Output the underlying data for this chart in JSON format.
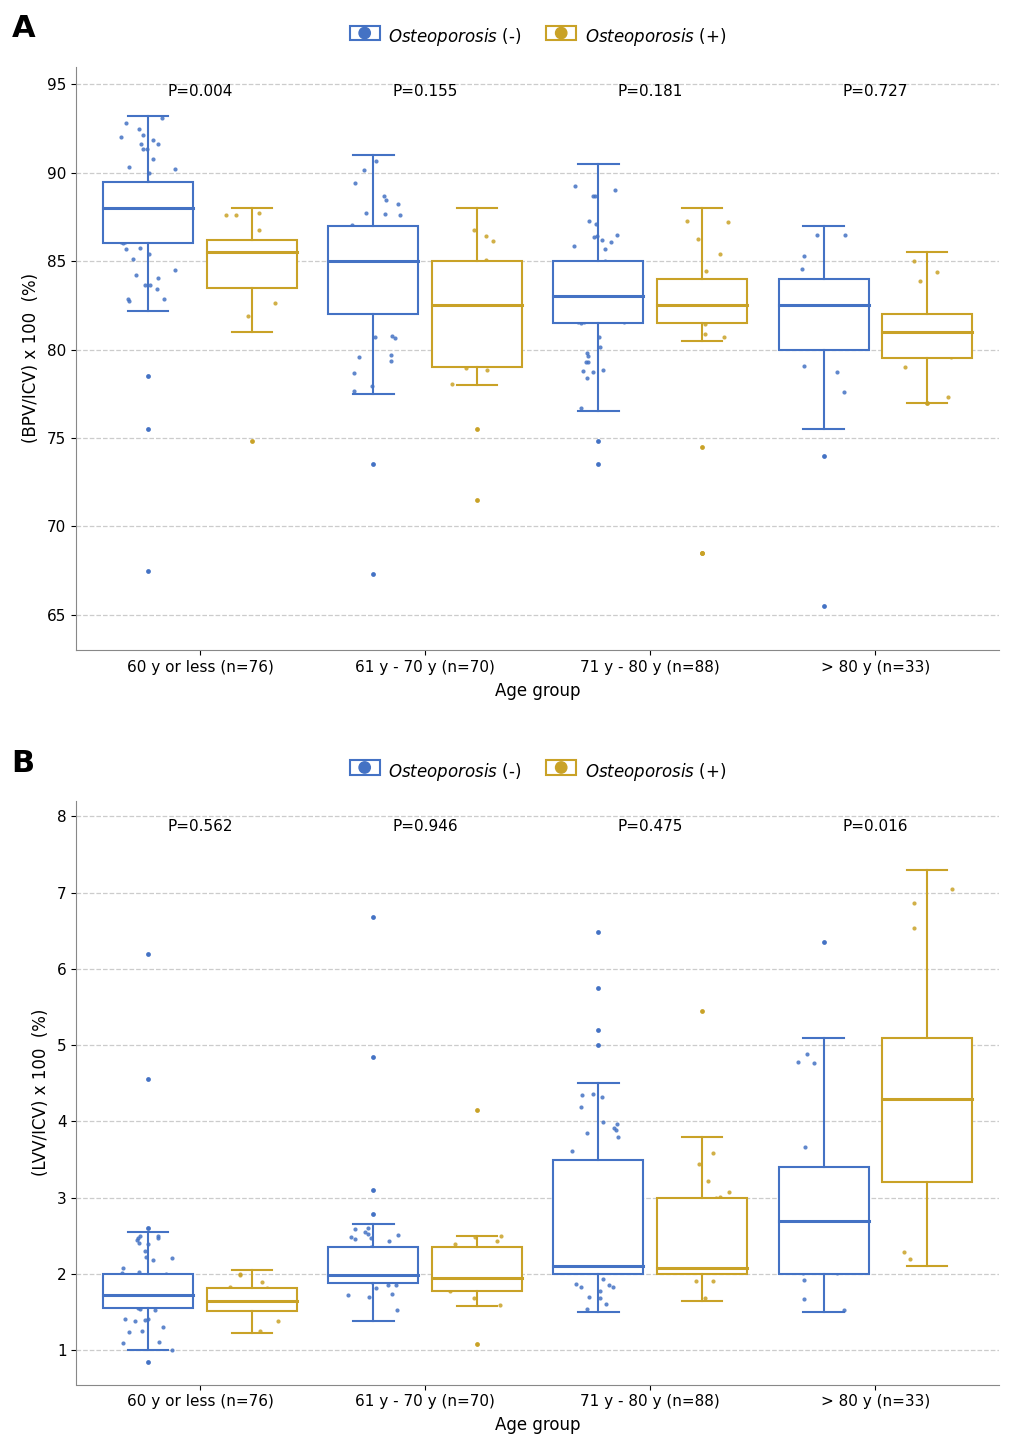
{
  "panel_A": {
    "title_label": "A",
    "ylabel": "(BPV/ICV) x 100  (%)",
    "xlabel": "Age group",
    "ylim": [
      63,
      96
    ],
    "yticks": [
      65,
      70,
      75,
      80,
      85,
      90,
      95
    ],
    "p_values": [
      "P=0.004",
      "P=0.155",
      "P=0.181",
      "P=0.727"
    ],
    "groups": [
      "60 y or less (n=76)",
      "61 y - 70 y (n=70)",
      "71 y - 80 y (n=88)",
      "> 80 y (n=33)"
    ],
    "blue_boxes": [
      {
        "q1": 86.0,
        "median": 88.0,
        "q3": 89.5,
        "whislo": 82.2,
        "whishi": 93.2
      },
      {
        "q1": 82.0,
        "median": 85.0,
        "q3": 87.0,
        "whislo": 77.5,
        "whishi": 91.0
      },
      {
        "q1": 81.5,
        "median": 83.0,
        "q3": 85.0,
        "whislo": 76.5,
        "whishi": 90.5
      },
      {
        "q1": 80.0,
        "median": 82.5,
        "q3": 84.0,
        "whislo": 75.5,
        "whishi": 87.0
      }
    ],
    "gold_boxes": [
      {
        "q1": 83.5,
        "median": 85.5,
        "q3": 86.2,
        "whislo": 81.0,
        "whishi": 88.0
      },
      {
        "q1": 79.0,
        "median": 82.5,
        "q3": 85.0,
        "whislo": 78.0,
        "whishi": 88.0
      },
      {
        "q1": 81.5,
        "median": 82.5,
        "q3": 84.0,
        "whislo": 80.5,
        "whishi": 88.0
      },
      {
        "q1": 79.5,
        "median": 81.0,
        "q3": 82.0,
        "whislo": 77.0,
        "whishi": 85.5
      }
    ],
    "blue_outliers_below": [
      [
        78.5,
        75.5
      ],
      [
        73.5
      ],
      [
        74.8,
        73.5
      ],
      [
        74.0
      ]
    ],
    "blue_outliers_above": [
      [],
      [],
      [],
      []
    ],
    "gold_outliers_below": [
      [
        74.8
      ],
      [
        75.5,
        71.5
      ],
      [
        74.5,
        68.5
      ],
      [
        77.0
      ]
    ],
    "gold_outliers_above": [
      [],
      [],
      [],
      []
    ],
    "blue_extreme_outliers": [
      [
        67.5
      ],
      [
        67.3
      ],
      [],
      [
        65.5
      ]
    ],
    "gold_extreme_outliers": [
      [],
      [],
      [
        68.5
      ],
      []
    ]
  },
  "panel_B": {
    "title_label": "B",
    "ylabel": "(LVV/ICV) x 100  (%)",
    "xlabel": "Age group",
    "ylim": [
      0.55,
      8.2
    ],
    "yticks": [
      1,
      2,
      3,
      4,
      5,
      6,
      7,
      8
    ],
    "p_values": [
      "P=0.562",
      "P=0.946",
      "P=0.475",
      "P=0.016"
    ],
    "groups": [
      "60 y or less (n=76)",
      "61 y - 70 y (n=70)",
      "71 y - 80 y (n=88)",
      "> 80 y (n=33)"
    ],
    "blue_boxes": [
      {
        "q1": 1.55,
        "median": 1.72,
        "q3": 2.0,
        "whislo": 1.0,
        "whishi": 2.55
      },
      {
        "q1": 1.88,
        "median": 1.98,
        "q3": 2.35,
        "whislo": 1.38,
        "whishi": 2.65
      },
      {
        "q1": 2.0,
        "median": 2.1,
        "q3": 3.5,
        "whislo": 1.5,
        "whishi": 4.5
      },
      {
        "q1": 2.0,
        "median": 2.7,
        "q3": 3.4,
        "whislo": 1.5,
        "whishi": 5.1
      }
    ],
    "gold_boxes": [
      {
        "q1": 1.52,
        "median": 1.65,
        "q3": 1.82,
        "whislo": 1.22,
        "whishi": 2.05
      },
      {
        "q1": 1.78,
        "median": 1.95,
        "q3": 2.35,
        "whislo": 1.58,
        "whishi": 2.5
      },
      {
        "q1": 2.0,
        "median": 2.08,
        "q3": 3.0,
        "whislo": 1.65,
        "whishi": 3.8
      },
      {
        "q1": 3.2,
        "median": 4.3,
        "q3": 5.1,
        "whislo": 2.1,
        "whishi": 7.3
      }
    ],
    "blue_outliers_below": [
      [
        0.85
      ],
      [],
      [],
      []
    ],
    "gold_outliers_below": [
      [],
      [
        1.08
      ],
      [],
      []
    ],
    "blue_outliers_above": [
      [
        2.6,
        4.55,
        6.2
      ],
      [
        2.78,
        3.1,
        4.85,
        6.68
      ],
      [
        5.0,
        5.2,
        5.75,
        6.48
      ],
      [
        6.35
      ]
    ],
    "gold_outliers_above": [
      [],
      [
        4.15
      ],
      [
        5.45
      ],
      []
    ],
    "blue_extreme_outliers": [
      [],
      [],
      [],
      []
    ],
    "gold_extreme_outliers": [
      [],
      [],
      [],
      []
    ]
  },
  "blue_color": "#4472C4",
  "gold_color": "#C9A227",
  "legend_blue_label": "Osteoporosis (-)",
  "legend_gold_label": "Osteoporosis (+)"
}
